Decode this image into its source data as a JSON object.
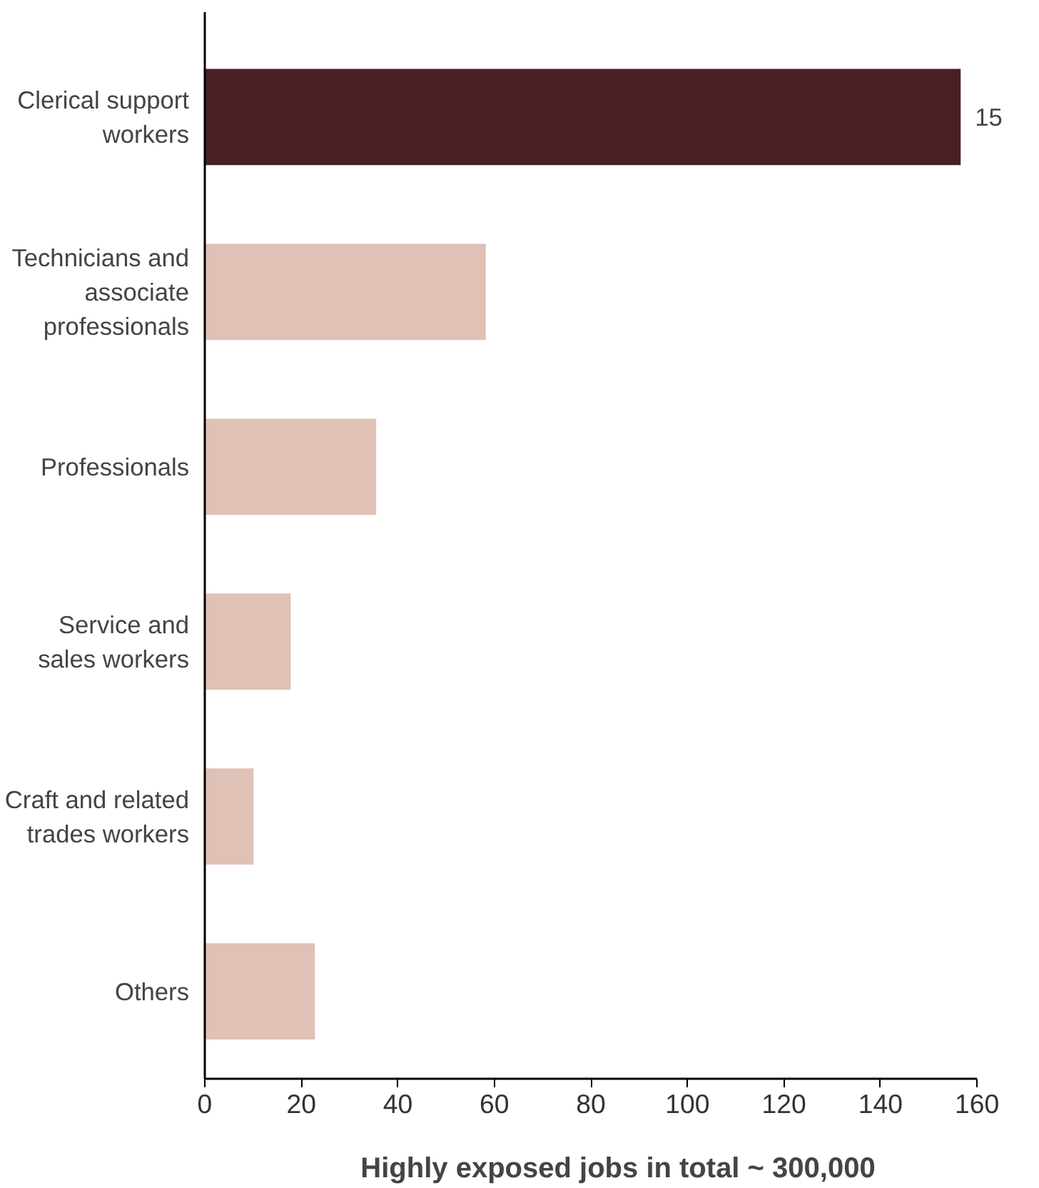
{
  "chart_data": {
    "type": "bar",
    "orientation": "horizontal",
    "xlabel": "Highly exposed jobs in total ~ 300,000",
    "categories": [
      "Clerical support\nworkers",
      "Technicians and\nassociate\nprofessionals",
      "Professionals",
      "Service and\nsales workers",
      "Craft and related\ntrades workers",
      "Others"
    ],
    "values": [
      156.6,
      58.2,
      35.5,
      17.8,
      10.1,
      22.8
    ],
    "colors": [
      "#4a1f24",
      "#e0c1b6",
      "#e0c1b6",
      "#e0c1b6",
      "#e0c1b6",
      "#e0c1b6"
    ],
    "annotations": [
      {
        "text": "15",
        "x": 156.6,
        "y": "Clerical support\nworkers"
      }
    ],
    "xlim": [
      0,
      160
    ],
    "xticks": [
      0,
      20,
      40,
      60,
      80,
      100,
      120,
      140,
      160
    ],
    "grid": false
  }
}
